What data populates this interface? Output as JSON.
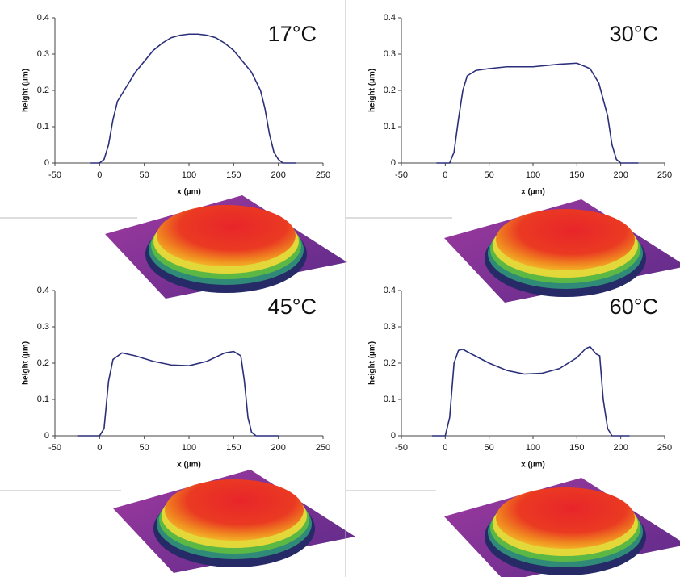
{
  "chart_data": [
    {
      "type": "line",
      "title": "17°C",
      "x_label": "x (µm)",
      "y_label": "height (µm)",
      "color": "#2b2f7a",
      "x": [
        -10,
        0,
        5,
        10,
        15,
        20,
        30,
        40,
        50,
        60,
        70,
        80,
        90,
        100,
        110,
        120,
        130,
        140,
        150,
        160,
        170,
        180,
        185,
        190,
        195,
        200,
        205,
        220
      ],
      "values": [
        0,
        0,
        0.01,
        0.05,
        0.12,
        0.17,
        0.21,
        0.25,
        0.28,
        0.31,
        0.33,
        0.345,
        0.352,
        0.355,
        0.355,
        0.352,
        0.345,
        0.33,
        0.31,
        0.28,
        0.25,
        0.2,
        0.15,
        0.08,
        0.03,
        0.01,
        0,
        0
      ],
      "xlim": [
        -50,
        250
      ],
      "xticks": [
        -50,
        0,
        50,
        100,
        150,
        200,
        250
      ],
      "ylim": [
        0,
        0.4
      ],
      "yticks": [
        0,
        0.1,
        0.2,
        0.3,
        0.4
      ]
    },
    {
      "type": "line",
      "title": "30°C",
      "x_label": "x (µm)",
      "y_label": "height (µm)",
      "color": "#2b2f7a",
      "x": [
        -10,
        5,
        10,
        15,
        20,
        25,
        35,
        50,
        70,
        100,
        130,
        150,
        165,
        175,
        185,
        190,
        195,
        200,
        220
      ],
      "values": [
        0,
        0,
        0.03,
        0.12,
        0.2,
        0.24,
        0.255,
        0.26,
        0.265,
        0.265,
        0.272,
        0.275,
        0.26,
        0.22,
        0.13,
        0.05,
        0.01,
        0,
        0
      ],
      "xlim": [
        -50,
        250
      ],
      "xticks": [
        -50,
        0,
        50,
        100,
        150,
        200,
        250
      ],
      "ylim": [
        0,
        0.4
      ],
      "yticks": [
        0,
        0.1,
        0.2,
        0.3,
        0.4
      ]
    },
    {
      "type": "line",
      "title": "45°C",
      "x_label": "x (µm)",
      "y_label": "height (µm)",
      "color": "#2b2f7a",
      "x": [
        -25,
        0,
        5,
        10,
        15,
        25,
        40,
        60,
        80,
        100,
        120,
        140,
        150,
        158,
        162,
        166,
        170,
        175,
        200
      ],
      "values": [
        0,
        0,
        0.02,
        0.15,
        0.21,
        0.228,
        0.22,
        0.205,
        0.195,
        0.193,
        0.205,
        0.228,
        0.232,
        0.22,
        0.15,
        0.05,
        0.01,
        0,
        0
      ],
      "xlim": [
        -50,
        250
      ],
      "xticks": [
        -50,
        0,
        50,
        100,
        150,
        200,
        250
      ],
      "ylim": [
        0,
        0.4
      ],
      "yticks": [
        0,
        0.1,
        0.2,
        0.3,
        0.4
      ]
    },
    {
      "type": "line",
      "title": "60°C",
      "x_label": "x (µm)",
      "y_label": "height (µm)",
      "color": "#2b2f7a",
      "x": [
        -15,
        0,
        5,
        10,
        15,
        20,
        30,
        50,
        70,
        90,
        110,
        130,
        150,
        160,
        165,
        172,
        176,
        180,
        185,
        190,
        210
      ],
      "values": [
        0,
        0,
        0.05,
        0.2,
        0.235,
        0.238,
        0.225,
        0.2,
        0.18,
        0.17,
        0.172,
        0.185,
        0.215,
        0.24,
        0.245,
        0.225,
        0.22,
        0.1,
        0.02,
        0,
        0
      ],
      "xlim": [
        -50,
        250
      ],
      "xticks": [
        -50,
        0,
        50,
        100,
        150,
        200,
        250
      ],
      "ylim": [
        0,
        0.4
      ],
      "yticks": [
        0,
        0.1,
        0.2,
        0.3,
        0.4
      ]
    }
  ]
}
